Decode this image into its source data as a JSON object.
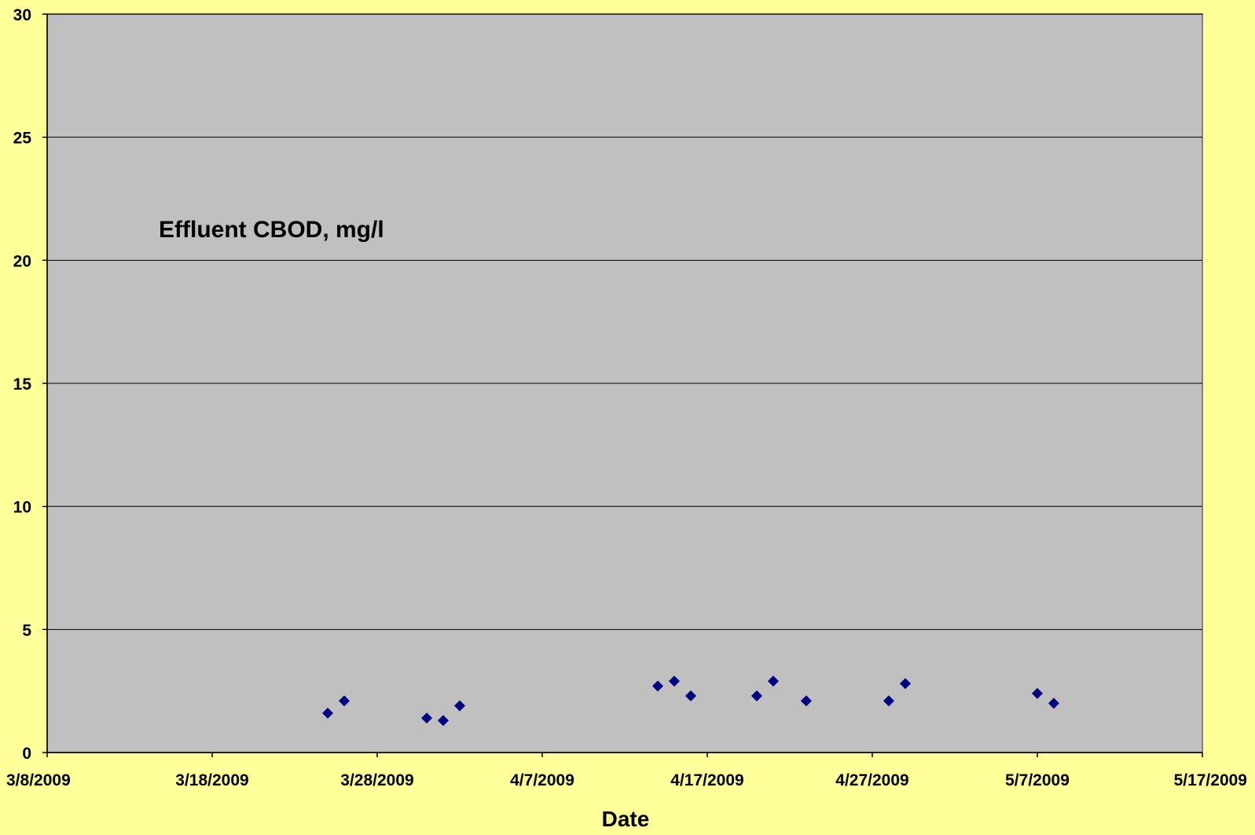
{
  "chart_data": {
    "type": "scatter",
    "title": "",
    "annotation": "Effluent CBOD, mg/l",
    "xlabel": "Date",
    "ylabel": "",
    "x_ticks": [
      "3/8/2009",
      "3/18/2009",
      "3/28/2009",
      "4/7/2009",
      "4/17/2009",
      "4/27/2009",
      "5/7/2009",
      "5/17/2009"
    ],
    "xlim": [
      "3/8/2009",
      "5/17/2009"
    ],
    "y_ticks": [
      "0",
      "5",
      "10",
      "15",
      "20",
      "25",
      "30"
    ],
    "ylim": [
      0,
      30
    ],
    "grid": "horizontal",
    "legend": "none",
    "marker": "diamond",
    "colors": {
      "page_background": "#ffff99",
      "plot_background": "#c0c0c0",
      "marker": "#000080",
      "gridline": "#000000",
      "plot_border": "#808080"
    },
    "series": [
      {
        "points": [
          {
            "x": "3/25/2009",
            "y": 1.6
          },
          {
            "x": "3/26/2009",
            "y": 2.1
          },
          {
            "x": "3/31/2009",
            "y": 1.4
          },
          {
            "x": "4/1/2009",
            "y": 1.3
          },
          {
            "x": "4/2/2009",
            "y": 1.9
          },
          {
            "x": "4/14/2009",
            "y": 2.7
          },
          {
            "x": "4/15/2009",
            "y": 2.9
          },
          {
            "x": "4/16/2009",
            "y": 2.3
          },
          {
            "x": "4/20/2009",
            "y": 2.3
          },
          {
            "x": "4/21/2009",
            "y": 2.9
          },
          {
            "x": "4/23/2009",
            "y": 2.1
          },
          {
            "x": "4/28/2009",
            "y": 2.1
          },
          {
            "x": "4/29/2009",
            "y": 2.8
          },
          {
            "x": "5/7/2009",
            "y": 2.4
          },
          {
            "x": "5/8/2009",
            "y": 2.0
          }
        ]
      }
    ]
  }
}
